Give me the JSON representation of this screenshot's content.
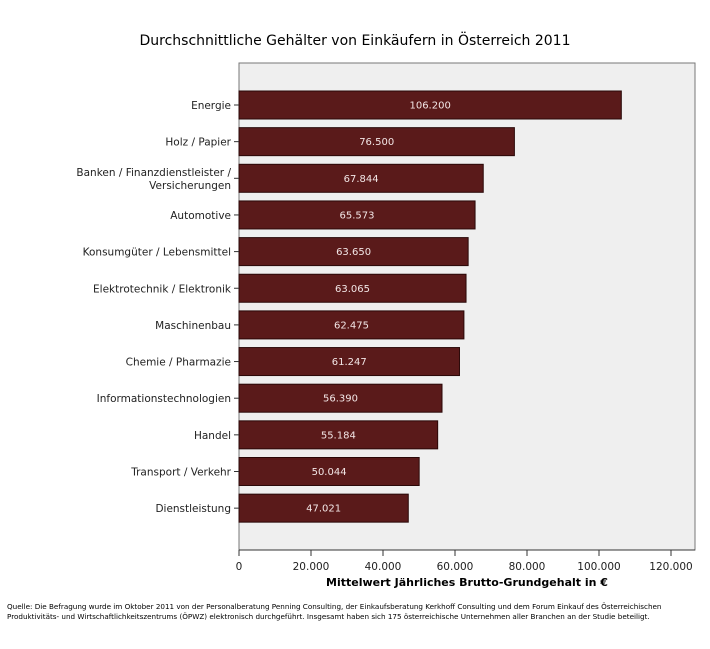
{
  "chart_data": {
    "type": "bar",
    "orientation": "horizontal",
    "title": "Durchschnittliche Gehälter von Einkäufern in Österreich 2011",
    "xlabel": "Mittelwert Jährliches Brutto-Grundgehalt in €",
    "ylabel": "",
    "xlim": [
      0,
      126500
    ],
    "xticks": [
      0,
      20000,
      40000,
      60000,
      80000,
      100000,
      120000
    ],
    "xtick_labels": [
      "0",
      "20.000",
      "40.000",
      "60.000",
      "80.000",
      "100.000",
      "120.000"
    ],
    "categories": [
      [
        "Energie"
      ],
      [
        "Holz / Papier"
      ],
      [
        "Banken / Finanzdienstleister /",
        "Versicherungen"
      ],
      [
        "Automotive"
      ],
      [
        "Konsumgüter / Lebensmittel"
      ],
      [
        "Elektrotechnik / Elektronik"
      ],
      [
        "Maschinenbau"
      ],
      [
        "Chemie / Pharmazie"
      ],
      [
        "Informationstechnologien"
      ],
      [
        "Handel"
      ],
      [
        "Transport / Verkehr"
      ],
      [
        "Dienstleistung"
      ]
    ],
    "values": [
      106200,
      76500,
      67844,
      65573,
      63650,
      63065,
      62475,
      61247,
      56390,
      55184,
      50044,
      47021
    ],
    "value_labels": [
      "106.200",
      "76.500",
      "67.844",
      "65.573",
      "63.650",
      "63.065",
      "62.475",
      "61.247",
      "56.390",
      "55.184",
      "50.044",
      "47.021"
    ],
    "bar_color": "#5a1a1a",
    "plot_background": "#efefef",
    "grid": false,
    "legend": "none"
  },
  "source_note": {
    "line1": "Quelle: Die Befragung wurde im Oktober 2011 von der Personalberatung Penning Consulting, der Einkaufsberatung Kerkhoff Consulting und dem Forum Einkauf des Österreichischen",
    "line2": "Produktivitäts- und Wirtschaftlichkeitszentrums (ÖPWZ) elektronisch durchgeführt. Insgesamt haben sich 175 österreichische Unternehmen aller Branchen an der Studie beteiligt."
  }
}
